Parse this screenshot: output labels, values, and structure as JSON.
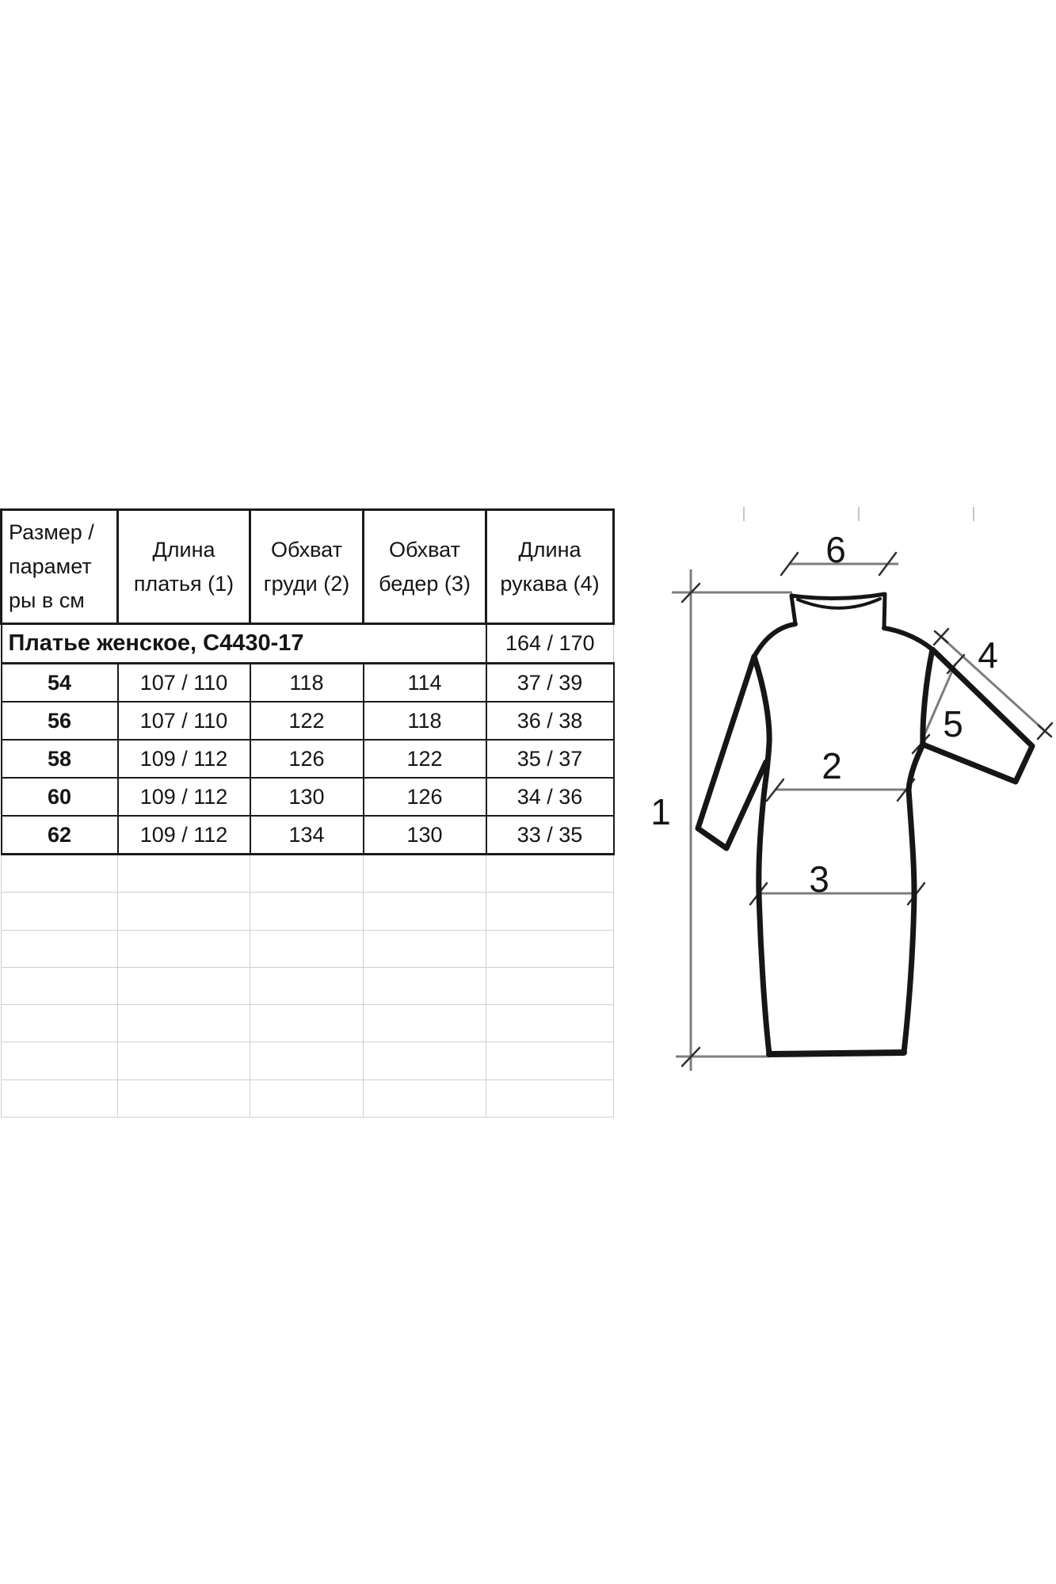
{
  "title_row": {
    "title": "Платье женское, С4430-17",
    "height_range": "164 / 170"
  },
  "size_table": {
    "header": [
      {
        "name": "size-params",
        "lines": [
          "Размер /",
          "парамет",
          "ры в см"
        ]
      },
      {
        "name": "dress-length",
        "lines": [
          "Длина",
          "платья (1)"
        ]
      },
      {
        "name": "chest-girth",
        "lines": [
          "Обхват",
          "груди (2)"
        ]
      },
      {
        "name": "hip-girth",
        "lines": [
          "Обхват",
          "бедер (3)"
        ]
      },
      {
        "name": "sleeve-length",
        "lines": [
          "Длина",
          "рукава (4)"
        ]
      }
    ],
    "rows": [
      [
        "54",
        "107 / 110",
        "118",
        "114",
        "37 / 39"
      ],
      [
        "56",
        "107 / 110",
        "122",
        "118",
        "36 / 38"
      ],
      [
        "58",
        "109 / 112",
        "126",
        "122",
        "35 / 37"
      ],
      [
        "60",
        "109 / 112",
        "130",
        "126",
        "34 / 36"
      ],
      [
        "62",
        "109 / 112",
        "134",
        "130",
        "33 / 35"
      ]
    ],
    "empty_row_count": 7
  },
  "diagram": {
    "dimension_labels": {
      "dress_length": "1",
      "chest_width": "2",
      "hip_width": "3",
      "sleeve_length": "4",
      "sleeve_width": "5",
      "neck_width": "6"
    }
  },
  "colors": {
    "background": "#ffffff",
    "border_dark": "#1b1b1b",
    "border_light": "#cfcfcf",
    "dimension_line": "#7d7d7d",
    "text": "#151515"
  }
}
